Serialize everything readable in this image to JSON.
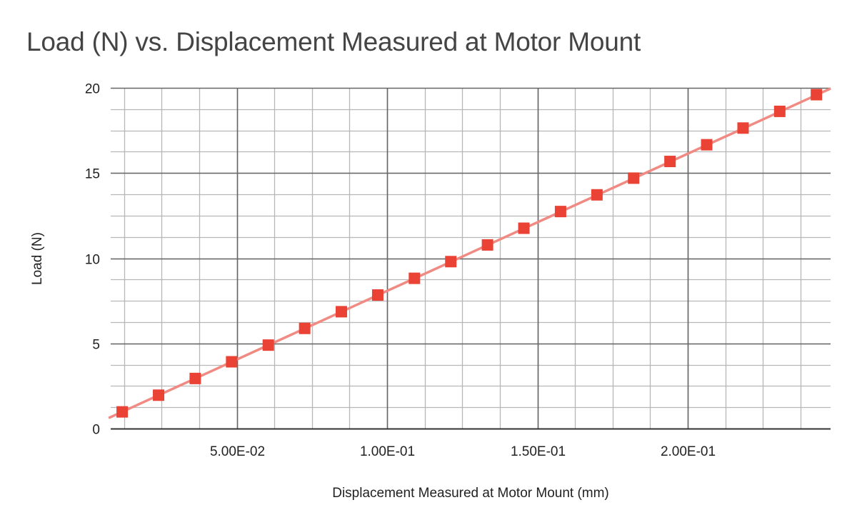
{
  "chart_data": {
    "type": "scatter",
    "title": "Load (N) vs. Displacement Measured at Motor Mount",
    "xlabel": "Displacement Measured at Motor Mount (mm)",
    "ylabel": "Load (N)",
    "xlim": [
      0.0081,
      0.2475
    ],
    "ylim": [
      0,
      20
    ],
    "x_ticks": [
      {
        "value": 0.05,
        "label": "5.00E-02"
      },
      {
        "value": 0.1,
        "label": "1.00E-01"
      },
      {
        "value": 0.15,
        "label": "1.50E-01"
      },
      {
        "value": 0.2,
        "label": "2.00E-01"
      }
    ],
    "x_minor_step": 0.0125,
    "y_ticks": [
      {
        "value": 0,
        "label": "0"
      },
      {
        "value": 5,
        "label": "5"
      },
      {
        "value": 10,
        "label": "10"
      },
      {
        "value": 15,
        "label": "15"
      },
      {
        "value": 20,
        "label": "20"
      }
    ],
    "y_minor_step": 1.25,
    "grid": true,
    "legend": "none",
    "series": [
      {
        "name": "Load (N)",
        "marker": "square",
        "color": "#ea4335",
        "x": [
          0.0119,
          0.024,
          0.0362,
          0.0483,
          0.0605,
          0.0726,
          0.0848,
          0.0969,
          0.1091,
          0.1212,
          0.1334,
          0.1455,
          0.1577,
          0.1698,
          0.182,
          0.1941,
          0.2063,
          0.2184,
          0.2306,
          0.2428
        ],
        "y": [
          0.98,
          1.96,
          2.94,
          3.92,
          4.9,
          5.88,
          6.86,
          7.84,
          8.82,
          9.8,
          10.78,
          11.76,
          12.74,
          13.72,
          14.7,
          15.68,
          16.66,
          17.64,
          18.62,
          19.6
        ]
      }
    ],
    "trendline": {
      "type": "linear",
      "color": "#f08a82",
      "x": [
        0.0074,
        0.2475
      ],
      "y": [
        0.62,
        19.96
      ]
    }
  },
  "colors": {
    "title": "#444444",
    "major_grid": "#666666",
    "minor_grid": "#b7b7b7",
    "baseline": "#333333"
  }
}
